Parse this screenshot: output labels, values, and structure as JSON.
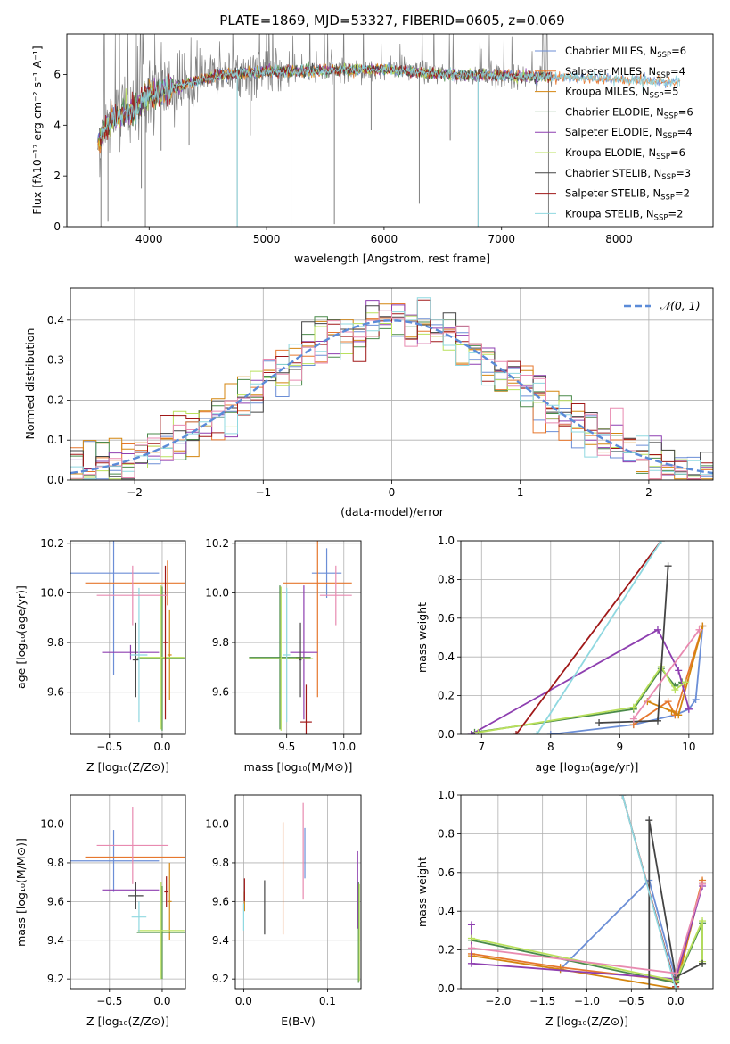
{
  "figure_title": "PLATE=1869, MJD=53327, FIBERID=0605, z=0.069",
  "colors": {
    "Chabrier MILES": "#6b8ed6",
    "Salpeter MILES": "#e6772e",
    "Kroupa MILES": "#d4850f",
    "Chabrier ELODIE": "#4a8a4a",
    "Salpeter ELODIE": "#8e3fb0",
    "Kroupa ELODIE": "#b9e05c",
    "Chabrier STELIB": "#444444",
    "Salpeter STELIB": "#a01818",
    "Kroupa STELIB": "#8fd8e0",
    "normal": "#5b8bd8",
    "spectrum_gray": "#808080",
    "grid": "#b0b0b0"
  },
  "chart_data": [
    {
      "id": "spectrum",
      "type": "line",
      "title": "PLATE=1869, MJD=53327, FIBERID=0605, z=0.069",
      "xlabel": "wavelength [Angstrom, rest frame]",
      "ylabel": "Flux [fλ10⁻¹⁷ erg cm⁻² s⁻¹ A⁻¹]",
      "xlim": [
        3300,
        8800
      ],
      "ylim": [
        0,
        7.6
      ],
      "xticks": [
        4000,
        5000,
        6000,
        7000,
        8000
      ],
      "yticks": [
        0,
        2,
        4,
        6
      ],
      "grid": false,
      "legend_position": "top-right",
      "legend": [
        {
          "label": "Chabrier MILES, N",
          "sub": "SSP",
          "tail": "=6"
        },
        {
          "label": "Salpeter MILES, N",
          "sub": "SSP",
          "tail": "=4"
        },
        {
          "label": "Kroupa MILES, N",
          "sub": "SSP",
          "tail": "=5"
        },
        {
          "label": "Chabrier ELODIE, N",
          "sub": "SSP",
          "tail": "=6"
        },
        {
          "label": "Salpeter ELODIE, N",
          "sub": "SSP",
          "tail": "=4"
        },
        {
          "label": "Kroupa ELODIE, N",
          "sub": "SSP",
          "tail": "=6"
        },
        {
          "label": "Chabrier STELIB, N",
          "sub": "SSP",
          "tail": "=3"
        },
        {
          "label": "Salpeter STELIB, N",
          "sub": "SSP",
          "tail": "=2"
        },
        {
          "label": "Kroupa STELIB, N",
          "sub": "SSP",
          "tail": "=2"
        }
      ],
      "continuum": {
        "x": [
          3560,
          3700,
          3900,
          4000,
          4300,
          4600,
          5000,
          5500,
          6000,
          6500,
          7000,
          7500,
          8000,
          8500
        ],
        "y": [
          3.3,
          4.3,
          4.7,
          5.2,
          5.6,
          6.0,
          6.1,
          6.15,
          6.2,
          6.0,
          5.95,
          5.9,
          5.8,
          5.7
        ]
      },
      "data_start": 3560,
      "data_end": 7430,
      "model_end": 8520,
      "absorption_lines": [
        {
          "x": 3590,
          "y": 0
        },
        {
          "x": 3650,
          "y": 0.2
        },
        {
          "x": 3934,
          "y": 1.5
        },
        {
          "x": 3968,
          "y": 0
        },
        {
          "x": 4102,
          "y": 3.0
        },
        {
          "x": 4340,
          "y": 3.2
        },
        {
          "x": 4750,
          "y": 0
        },
        {
          "x": 4861,
          "y": 3.6
        },
        {
          "x": 5208,
          "y": 0
        },
        {
          "x": 5577,
          "y": 0.1
        },
        {
          "x": 5890,
          "y": 3.8
        },
        {
          "x": 6300,
          "y": 0.9
        },
        {
          "x": 6563,
          "y": 3.4
        },
        {
          "x": 6800,
          "y": 0
        },
        {
          "x": 7400,
          "y": 0
        }
      ]
    },
    {
      "id": "residuals",
      "type": "line",
      "xlabel": "(data-model)/error",
      "ylabel": "Normed distribution",
      "xlim": [
        -2.5,
        2.5
      ],
      "ylim": [
        0,
        0.48
      ],
      "xticks": [
        -2,
        -1,
        0,
        1,
        2
      ],
      "xticklabels": [
        "−2",
        "−1",
        "0",
        "1",
        "2"
      ],
      "yticks": [
        0.0,
        0.1,
        0.2,
        0.3,
        0.4
      ],
      "grid": true,
      "legend_position": "top-right",
      "normal_label": "𝒩(0, 1)",
      "bin_width": 0.1,
      "bin_start": -2.5
    },
    {
      "id": "age_vs_Z",
      "type": "scatter",
      "xlabel": "Z [log₁₀(Z/Z⊙)]",
      "ylabel": "age  [log₁₀(age/yr)]",
      "xlim": [
        -0.87,
        0.22
      ],
      "ylim": [
        9.43,
        10.21
      ],
      "xticks": [
        -0.5,
        0.0
      ],
      "xticklabels": [
        "−0.5",
        "0.0"
      ],
      "yticks": [
        9.6,
        9.8,
        10.0,
        10.2
      ],
      "yticklabels": [
        "9.6",
        "9.8",
        "10.0",
        "10.2"
      ],
      "grid": true,
      "points": [
        {
          "model": "Chabrier MILES",
          "x": -0.46,
          "xerr": 0.43,
          "y": 10.08,
          "yerr": 0.41
        },
        {
          "model": "Salpeter MILES",
          "x": 0.05,
          "xerr": 0.78,
          "y": 10.04,
          "yerr": 0.09
        },
        {
          "model": "Kroupa MILES",
          "x": 0.07,
          "xerr": 0.02,
          "y": 9.75,
          "yerr": 0.18
        },
        {
          "model": "Chabrier ELODIE",
          "x": 0.0,
          "xerr": 0.24,
          "y": 9.735,
          "yerr": 0.29
        },
        {
          "model": "Salpeter ELODIE",
          "x": -0.3,
          "xerr": 0.27,
          "y": 9.76,
          "yerr": 0.03
        },
        {
          "model": "Kroupa ELODIE",
          "x": -0.01,
          "xerr": 0.22,
          "y": 9.74,
          "yerr": 0.29
        },
        {
          "model": "Chabrier STELIB",
          "x": -0.25,
          "xerr": 0.03,
          "y": 9.73,
          "yerr": 0.15
        },
        {
          "model": "Salpeter STELIB",
          "x": 0.03,
          "xerr": 0.02,
          "y": 9.8,
          "yerr": 0.31
        },
        {
          "model": "Kroupa STELIB",
          "x": -0.22,
          "xerr": 0.08,
          "y": 9.75,
          "yerr": 0.27
        },
        {
          "model": "extra-pink",
          "x": -0.28,
          "xerr": 0.34,
          "y": 9.99,
          "yerr": 0.12
        }
      ]
    },
    {
      "id": "age_vs_mass",
      "type": "scatter",
      "xlabel": "mass [log₁₀(M/M⊙)]",
      "xlim": [
        9.05,
        10.15
      ],
      "ylim": [
        9.43,
        10.21
      ],
      "xticks": [
        9.5,
        10.0
      ],
      "xticklabels": [
        "9.5",
        "10.0"
      ],
      "yticks": [
        9.6,
        9.8,
        10.0,
        10.2
      ],
      "yticklabels": [
        "9.6",
        "9.8",
        "10.0",
        "10.2"
      ],
      "grid": true,
      "points": [
        {
          "model": "Chabrier MILES",
          "x": 9.85,
          "xerr": 0.13,
          "y": 10.08,
          "yerr": 0.1
        },
        {
          "model": "Salpeter MILES",
          "x": 9.77,
          "xerr": 0.3,
          "y": 10.04,
          "yerr": 0.46
        },
        {
          "model": "Kroupa MILES",
          "x": 9.6,
          "xerr": 0.02,
          "y": 9.74,
          "yerr": 0.0
        },
        {
          "model": "Chabrier ELODIE",
          "x": 9.44,
          "xerr": 0.27,
          "y": 9.74,
          "yerr": 0.29
        },
        {
          "model": "Salpeter ELODIE",
          "x": 9.65,
          "xerr": 0.12,
          "y": 9.76,
          "yerr": 0.27
        },
        {
          "model": "Kroupa ELODIE",
          "x": 9.45,
          "xerr": 0.28,
          "y": 9.735,
          "yerr": 0.29
        },
        {
          "model": "Chabrier STELIB",
          "x": 9.62,
          "xerr": 0.01,
          "y": 9.73,
          "yerr": 0.15
        },
        {
          "model": "Salpeter STELIB",
          "x": 9.67,
          "xerr": 0.05,
          "y": 9.48,
          "yerr": 0.15
        },
        {
          "model": "Kroupa STELIB",
          "x": 9.5,
          "xerr": 0.03,
          "y": 9.75,
          "yerr": 0.27
        },
        {
          "model": "extra-pink",
          "x": 9.93,
          "xerr": 0.14,
          "y": 9.99,
          "yerr": 0.12
        }
      ]
    },
    {
      "id": "weight_vs_age",
      "type": "line",
      "xlabel": "age  [log₁₀(age/yr)]",
      "ylabel": "mass weight",
      "xlim": [
        6.7,
        10.35
      ],
      "ylim": [
        0,
        1.0
      ],
      "xticks": [
        7,
        8,
        9,
        10
      ],
      "yticks": [
        0.0,
        0.2,
        0.4,
        0.6,
        0.8,
        1.0
      ],
      "grid": true,
      "series": [
        {
          "model": "Chabrier MILES",
          "x": [
            8.0,
            9.2,
            9.8,
            10.0,
            10.1,
            10.2
          ],
          "y": [
            0.0,
            0.05,
            0.1,
            0.13,
            0.18,
            0.56
          ]
        },
        {
          "model": "Salpeter MILES",
          "x": [
            9.2,
            9.7,
            9.8,
            10.2
          ],
          "y": [
            0.05,
            0.17,
            0.1,
            0.56
          ]
        },
        {
          "model": "Kroupa MILES",
          "x": [
            9.4,
            9.75,
            9.85,
            10.2
          ],
          "y": [
            0.17,
            0.12,
            0.1,
            0.56
          ]
        },
        {
          "model": "Chabrier ELODIE",
          "x": [
            6.9,
            9.2,
            9.6,
            9.8,
            9.9
          ],
          "y": [
            0.01,
            0.13,
            0.34,
            0.25,
            0.27
          ]
        },
        {
          "model": "Salpeter ELODIE",
          "x": [
            6.85,
            9.55,
            9.85,
            10.0
          ],
          "y": [
            0.0,
            0.54,
            0.33,
            0.13
          ]
        },
        {
          "model": "Kroupa ELODIE",
          "x": [
            6.95,
            9.2,
            9.6,
            9.8,
            9.95
          ],
          "y": [
            0.01,
            0.14,
            0.35,
            0.23,
            0.27
          ]
        },
        {
          "model": "Chabrier STELIB",
          "x": [
            8.7,
            9.55,
            9.7
          ],
          "y": [
            0.06,
            0.07,
            0.87
          ]
        },
        {
          "model": "Salpeter STELIB",
          "x": [
            7.5,
            9.6
          ],
          "y": [
            0.0,
            1.0
          ]
        },
        {
          "model": "Kroupa STELIB",
          "x": [
            7.8,
            9.6
          ],
          "y": [
            0.0,
            1.0
          ]
        },
        {
          "model": "extra-pink",
          "x": [
            9.2,
            10.15
          ],
          "y": [
            0.08,
            0.54
          ]
        }
      ]
    },
    {
      "id": "mass_vs_Z",
      "type": "scatter",
      "xlabel": "Z [log₁₀(Z/Z⊙)]",
      "ylabel": "mass [log₁₀(M/M⊙)]",
      "xlim": [
        -0.87,
        0.22
      ],
      "ylim": [
        9.15,
        10.15
      ],
      "xticks": [
        -0.5,
        0.0
      ],
      "xticklabels": [
        "−0.5",
        "0.0"
      ],
      "yticks": [
        9.2,
        9.4,
        9.6,
        9.8,
        10.0
      ],
      "yticklabels": [
        "9.2",
        "9.4",
        "9.6",
        "9.8",
        "10.0"
      ],
      "grid": true,
      "points": [
        {
          "model": "Chabrier MILES",
          "x": -0.46,
          "xerr": 0.43,
          "y": 9.81,
          "yerr": 0.16
        },
        {
          "model": "Salpeter MILES",
          "x": 0.05,
          "xerr": 0.78,
          "y": 9.83,
          "yerr": 0.0
        },
        {
          "model": "Kroupa MILES",
          "x": 0.07,
          "xerr": 0.02,
          "y": 9.6,
          "yerr": 0.2
        },
        {
          "model": "Chabrier ELODIE",
          "x": 0.0,
          "xerr": 0.24,
          "y": 9.44,
          "yerr": 0.24
        },
        {
          "model": "Salpeter ELODIE",
          "x": -0.3,
          "xerr": 0.27,
          "y": 9.66,
          "yerr": 0.0
        },
        {
          "model": "Kroupa ELODIE",
          "x": -0.01,
          "xerr": 0.22,
          "y": 9.45,
          "yerr": 0.25
        },
        {
          "model": "Chabrier STELIB",
          "x": -0.25,
          "xerr": 0.07,
          "y": 9.63,
          "yerr": 0.07
        },
        {
          "model": "Salpeter STELIB",
          "x": 0.04,
          "xerr": 0.02,
          "y": 9.65,
          "yerr": 0.08
        },
        {
          "model": "Kroupa STELIB",
          "x": -0.22,
          "xerr": 0.07,
          "y": 9.52,
          "yerr": 0.08
        },
        {
          "model": "extra-pink",
          "x": -0.28,
          "xerr": 0.34,
          "y": 9.89,
          "yerr": 0.2
        }
      ]
    },
    {
      "id": "mass_vs_EBV",
      "type": "scatter",
      "xlabel": "E(B-V)",
      "xlim": [
        -0.01,
        0.14
      ],
      "ylim": [
        9.15,
        10.15
      ],
      "xticks": [
        0.0,
        0.1
      ],
      "xticklabels": [
        "0.0",
        "0.1"
      ],
      "yticks": [
        9.2,
        9.4,
        9.6,
        9.8,
        10.0
      ],
      "yticklabels": [
        "9.2",
        "9.4",
        "9.6",
        "9.8",
        "10.0"
      ],
      "grid": true,
      "points": [
        {
          "model": "Chabrier MILES",
          "x": 0.073,
          "y": 9.85,
          "yerr": 0.13
        },
        {
          "model": "Salpeter MILES",
          "x": 0.047,
          "y": 9.72,
          "yerr": 0.29
        },
        {
          "model": "Kroupa MILES",
          "x": 0.001,
          "y": 9.6,
          "yerr": 0.05
        },
        {
          "model": "Chabrier ELODIE",
          "x": 0.137,
          "y": 9.44,
          "yerr": 0.26
        },
        {
          "model": "Salpeter ELODIE",
          "x": 0.136,
          "y": 9.66,
          "yerr": 0.2
        },
        {
          "model": "Kroupa ELODIE",
          "x": 0.138,
          "y": 9.44,
          "yerr": 0.25
        },
        {
          "model": "Chabrier STELIB",
          "x": 0.025,
          "y": 9.57,
          "yerr": 0.14
        },
        {
          "model": "Salpeter STELIB",
          "x": 0.001,
          "y": 9.66,
          "yerr": 0.06
        },
        {
          "model": "Kroupa STELIB",
          "x": 0.0,
          "y": 9.52,
          "yerr": 0.07
        },
        {
          "model": "extra-pink",
          "x": 0.071,
          "y": 9.86,
          "yerr": 0.25
        }
      ]
    },
    {
      "id": "weight_vs_Z",
      "type": "line",
      "xlabel": "Z [log₁₀(Z/Z⊙)]",
      "ylabel": "mass weight",
      "xlim": [
        -2.42,
        0.42
      ],
      "ylim": [
        0,
        1.0
      ],
      "xticks": [
        -2.0,
        -1.5,
        -1.0,
        -0.5,
        0.0
      ],
      "xticklabels": [
        "−2.0",
        "−1.5",
        "−1.0",
        "−0.5",
        "0.0"
      ],
      "yticks": [
        0.0,
        0.2,
        0.4,
        0.6,
        0.8,
        1.0
      ],
      "grid": true,
      "series": [
        {
          "model": "Chabrier MILES",
          "x": [
            -1.3,
            -0.3,
            0.0,
            0.3
          ],
          "y": [
            0.1,
            0.56,
            0.05,
            0.55
          ]
        },
        {
          "model": "Salpeter MILES",
          "x": [
            -2.3,
            -1.3,
            0.0,
            0.3
          ],
          "y": [
            0.18,
            0.11,
            0.04,
            0.56
          ]
        },
        {
          "model": "Kroupa MILES",
          "x": [
            -2.3,
            -1.3,
            0.0,
            0.3
          ],
          "y": [
            0.17,
            0.1,
            0.0,
            0.55
          ]
        },
        {
          "model": "Chabrier ELODIE",
          "x": [
            -2.3,
            0.0,
            0.3,
            0.3
          ],
          "y": [
            0.25,
            0.03,
            0.34,
            0.13
          ]
        },
        {
          "model": "Salpeter ELODIE",
          "x": [
            -2.3,
            -2.3,
            0.0,
            0.3
          ],
          "y": [
            0.33,
            0.13,
            0.05,
            0.53
          ]
        },
        {
          "model": "Kroupa ELODIE",
          "x": [
            -2.3,
            0.0,
            0.3,
            0.3
          ],
          "y": [
            0.26,
            0.04,
            0.35,
            0.14
          ]
        },
        {
          "model": "Chabrier STELIB",
          "x": [
            -0.3,
            -0.3,
            0.0,
            0.3
          ],
          "y": [
            0.0,
            0.87,
            0.06,
            0.13
          ]
        },
        {
          "model": "Salpeter STELIB",
          "x": [
            -0.6,
            0.0
          ],
          "y": [
            1.0,
            0.01
          ]
        },
        {
          "model": "Kroupa STELIB",
          "x": [
            -0.6,
            0.0
          ],
          "y": [
            1.0,
            0.0
          ]
        },
        {
          "model": "extra-pink",
          "x": [
            -2.3,
            0.0,
            0.3
          ],
          "y": [
            0.21,
            0.08,
            0.54
          ]
        }
      ]
    }
  ]
}
